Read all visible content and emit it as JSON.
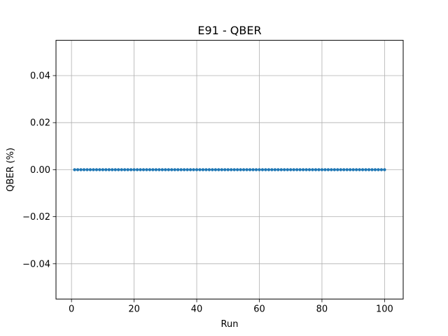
{
  "chart_data": {
    "type": "line",
    "title": "E91 - QBER",
    "xlabel": "Run",
    "ylabel": "QBER (%)",
    "xlim": [
      -4.95,
      105.95
    ],
    "ylim": [
      -0.055,
      0.055
    ],
    "x_ticks": [
      0,
      20,
      40,
      60,
      80,
      100
    ],
    "y_ticks": [
      -0.04,
      -0.02,
      0.0,
      0.02,
      0.04
    ],
    "x_tick_labels": [
      "0",
      "20",
      "40",
      "60",
      "80",
      "100"
    ],
    "y_tick_labels": [
      "−0.04",
      "−0.02",
      "0.00",
      "0.02",
      "0.04"
    ],
    "grid": true,
    "legend": "none",
    "series": [
      {
        "x_start": 1,
        "x_end": 100,
        "x_step": 1,
        "y_constant": 0.0,
        "marker": "circle",
        "color": "#1f77b4"
      }
    ]
  }
}
